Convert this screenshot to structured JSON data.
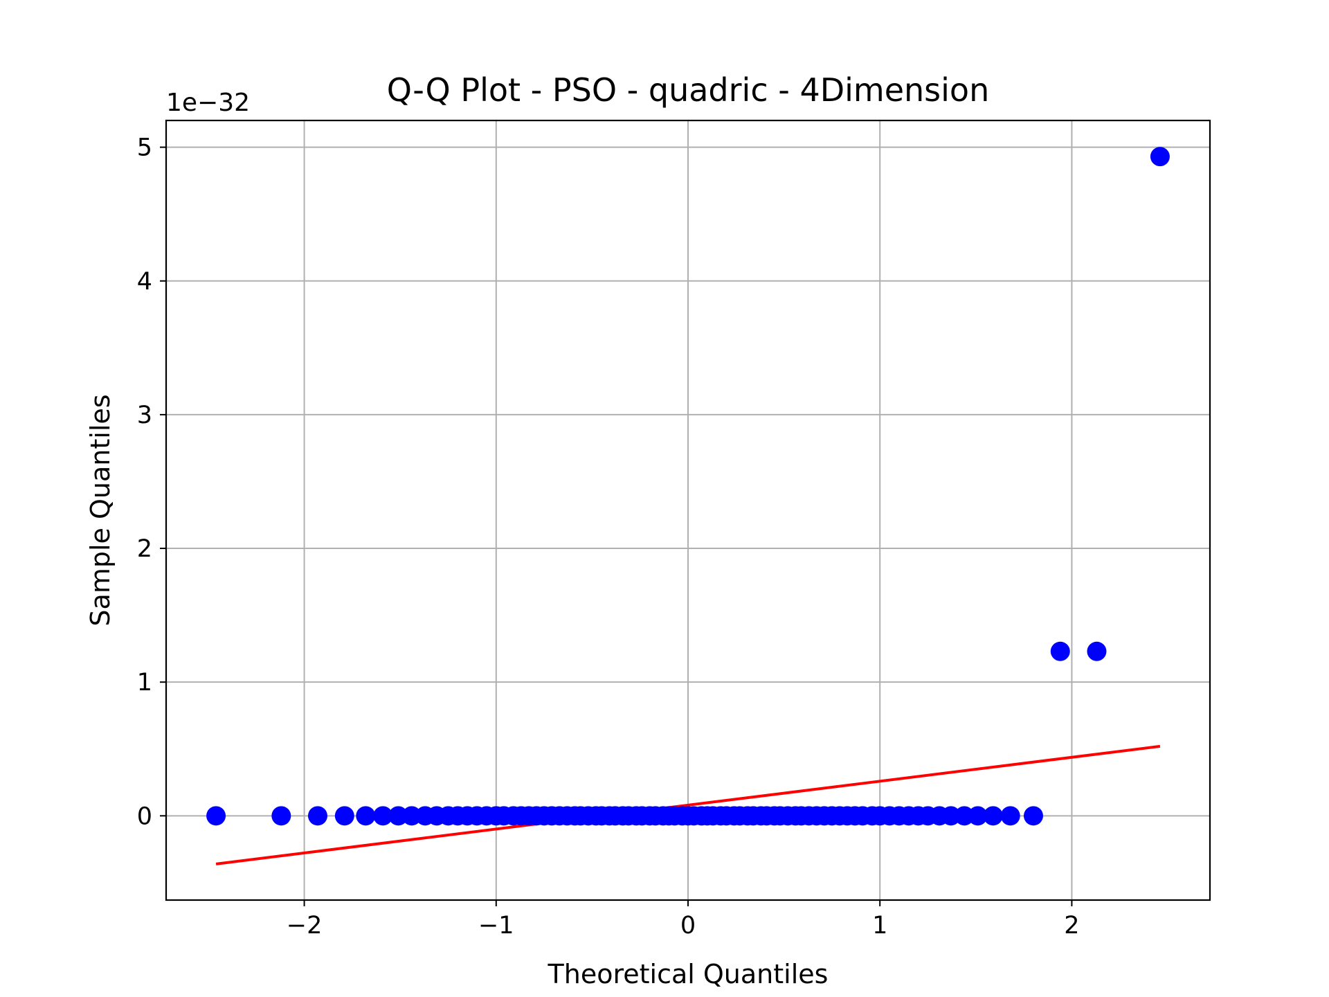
{
  "chart_data": {
    "type": "scatter",
    "title": "Q-Q Plot - PSO - quadric - 4Dimension",
    "xlabel": "Theoretical Quantiles",
    "ylabel": "Sample Quantiles",
    "y_offset_label": "1e−32",
    "y_scale": 1e-32,
    "xlim": [
      -2.72,
      2.72
    ],
    "ylim": [
      -0.63,
      5.2
    ],
    "xticks": [
      -2,
      -1,
      0,
      1,
      2
    ],
    "xtick_labels": [
      "−2",
      "−1",
      "0",
      "1",
      "2"
    ],
    "yticks": [
      0,
      1,
      2,
      3,
      4,
      5
    ],
    "ytick_labels": [
      "0",
      "1",
      "2",
      "3",
      "4",
      "5"
    ],
    "grid": true,
    "series": [
      {
        "kind": "points",
        "color": "#0000ff",
        "x": [
          -2.46,
          -2.12,
          -1.93,
          -1.79,
          -1.68,
          -1.59,
          -1.51,
          -1.44,
          -1.37,
          -1.31,
          -1.25,
          -1.2,
          -1.15,
          -1.1,
          -1.05,
          -1.0,
          -0.96,
          -0.91,
          -0.87,
          -0.83,
          -0.79,
          -0.75,
          -0.71,
          -0.67,
          -0.63,
          -0.59,
          -0.56,
          -0.52,
          -0.48,
          -0.45,
          -0.41,
          -0.38,
          -0.34,
          -0.31,
          -0.27,
          -0.24,
          -0.2,
          -0.17,
          -0.13,
          -0.1,
          -0.07,
          -0.03,
          0.0,
          0.03,
          0.07,
          0.1,
          0.13,
          0.17,
          0.2,
          0.24,
          0.27,
          0.31,
          0.34,
          0.38,
          0.41,
          0.45,
          0.48,
          0.52,
          0.56,
          0.59,
          0.63,
          0.67,
          0.71,
          0.75,
          0.79,
          0.83,
          0.87,
          0.91,
          0.96,
          1.0,
          1.05,
          1.1,
          1.15,
          1.2,
          1.25,
          1.31,
          1.37,
          1.44,
          1.51,
          1.59,
          1.68,
          1.8,
          1.94,
          2.13,
          2.46
        ],
        "y": [
          0,
          0,
          0,
          0,
          0,
          0,
          0,
          0,
          0,
          0,
          0,
          0,
          0,
          0,
          0,
          0,
          0,
          0,
          0,
          0,
          0,
          0,
          0,
          0,
          0,
          0,
          0,
          0,
          0,
          0,
          0,
          0,
          0,
          0,
          0,
          0,
          0,
          0,
          0,
          0,
          0,
          0,
          0,
          0,
          0,
          0,
          0,
          0,
          0,
          0,
          0,
          0,
          0,
          0,
          0,
          0,
          0,
          0,
          0,
          0,
          0,
          0,
          0,
          0,
          0,
          0,
          0,
          0,
          0,
          0,
          0,
          0,
          0,
          0,
          0,
          0,
          0,
          0,
          0,
          0,
          0,
          0,
          1.23,
          1.23,
          4.93
        ]
      },
      {
        "kind": "line",
        "color": "#ff0000",
        "x": [
          -2.46,
          2.46
        ],
        "y": [
          -0.36,
          0.52
        ]
      }
    ]
  }
}
